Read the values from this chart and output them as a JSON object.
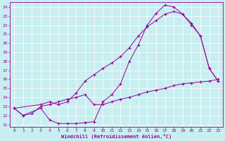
{
  "xlabel": "Windchill (Refroidissement éolien,°C)",
  "background_color": "#c8eef0",
  "line_color": "#990099",
  "xlim": [
    -0.5,
    23.5
  ],
  "ylim": [
    10.7,
    24.5
  ],
  "xticks": [
    0,
    1,
    2,
    3,
    4,
    5,
    6,
    7,
    8,
    9,
    10,
    11,
    12,
    13,
    14,
    15,
    16,
    17,
    18,
    19,
    20,
    21,
    22,
    23
  ],
  "yticks": [
    11,
    12,
    13,
    14,
    15,
    16,
    17,
    18,
    19,
    20,
    21,
    22,
    23,
    24
  ],
  "line1_x": [
    0,
    1,
    3,
    4,
    5,
    6,
    7,
    8,
    9,
    10,
    11,
    12,
    13,
    14,
    15,
    16,
    17,
    18,
    19,
    20,
    21,
    22,
    23
  ],
  "line1_y": [
    12.8,
    12.0,
    12.8,
    11.5,
    11.1,
    11.1,
    11.1,
    11.2,
    11.3,
    13.5,
    14.3,
    15.5,
    18.0,
    19.8,
    22.0,
    23.3,
    24.2,
    24.0,
    23.2,
    22.2,
    20.8,
    17.2,
    15.8
  ],
  "line2_x": [
    0,
    3,
    4,
    5,
    6,
    7,
    8,
    9,
    10,
    11,
    12,
    13,
    14,
    15,
    16,
    17,
    18,
    19,
    20,
    21,
    22,
    23
  ],
  "line2_y": [
    12.8,
    13.2,
    13.5,
    13.2,
    13.5,
    14.5,
    15.8,
    16.5,
    17.2,
    17.8,
    18.5,
    19.5,
    20.8,
    21.8,
    22.5,
    23.2,
    23.5,
    23.2,
    22.0,
    20.8,
    17.2,
    15.8
  ],
  "line3_x": [
    0,
    1,
    2,
    3,
    4,
    5,
    6,
    7,
    8,
    9,
    10,
    11,
    12,
    13,
    14,
    15,
    16,
    17,
    18,
    19,
    20,
    21,
    22,
    23
  ],
  "line3_y": [
    12.8,
    12.0,
    12.2,
    13.0,
    13.2,
    13.5,
    13.8,
    14.0,
    14.3,
    13.2,
    13.2,
    13.5,
    13.8,
    14.0,
    14.3,
    14.6,
    14.8,
    15.0,
    15.3,
    15.5,
    15.6,
    15.7,
    15.8,
    16.0
  ]
}
